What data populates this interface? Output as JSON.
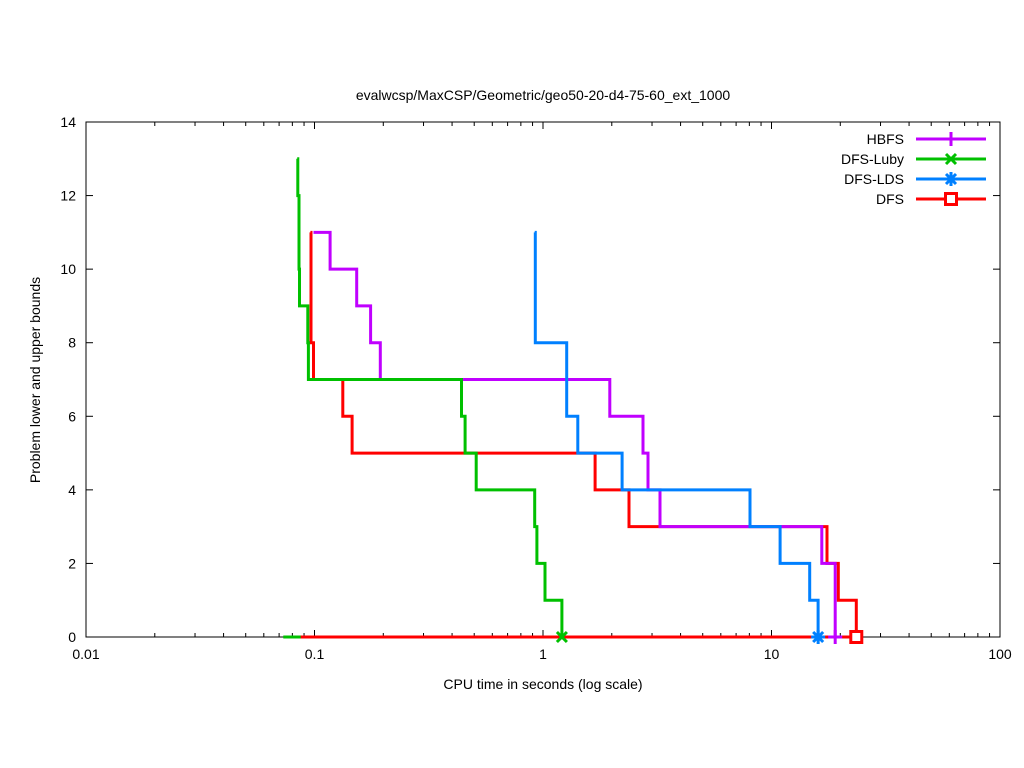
{
  "chart_data": {
    "type": "line",
    "subtype": "staircase-bounds",
    "title": "evalwcsp/MaxCSP/Geometric/geo50-20-d4-75-60_ext_1000",
    "xlabel": "CPU time in seconds (log scale)",
    "ylabel": "Problem lower and upper bounds",
    "x_scale": "log",
    "xlim": [
      0.01,
      100
    ],
    "ylim": [
      0,
      14
    ],
    "grid": false,
    "axis_color": "#000000",
    "background_color": "#ffffff",
    "legend_position": "top-right-inside",
    "x_major_ticks": [
      {
        "value": 0.01,
        "label": "0.01"
      },
      {
        "value": 0.1,
        "label": "0.1"
      },
      {
        "value": 1,
        "label": "1"
      },
      {
        "value": 10,
        "label": "10"
      },
      {
        "value": 100,
        "label": "100"
      }
    ],
    "y_major_ticks": [
      {
        "value": 0,
        "label": "0"
      },
      {
        "value": 2,
        "label": "2"
      },
      {
        "value": 4,
        "label": "4"
      },
      {
        "value": 6,
        "label": "6"
      },
      {
        "value": 8,
        "label": "8"
      },
      {
        "value": 10,
        "label": "10"
      },
      {
        "value": 12,
        "label": "12"
      },
      {
        "value": 14,
        "label": "14"
      }
    ],
    "series": [
      {
        "name": "HBFS",
        "color": "#c000ff",
        "marker": "plus",
        "upper_bound_steps": [
          [
            0.099,
            11
          ],
          [
            0.117,
            10
          ],
          [
            0.153,
            9
          ],
          [
            0.176,
            8
          ],
          [
            0.194,
            7
          ],
          [
            1.96,
            6
          ],
          [
            2.74,
            5
          ],
          [
            2.88,
            4
          ],
          [
            3.25,
            3
          ],
          [
            16.6,
            2
          ],
          [
            19.0,
            0
          ]
        ],
        "lower_bound_value": 0,
        "lower_bound_from": 0.099,
        "lower_bound_to": 19.0,
        "end_marker_at": [
          19.0,
          0
        ]
      },
      {
        "name": "DFS-Luby",
        "color": "#00c000",
        "marker": "cross",
        "upper_bound_steps": [
          [
            0.084,
            13
          ],
          [
            0.0845,
            12
          ],
          [
            0.0855,
            10
          ],
          [
            0.086,
            9
          ],
          [
            0.0935,
            8
          ],
          [
            0.094,
            7
          ],
          [
            0.44,
            6
          ],
          [
            0.456,
            5
          ],
          [
            0.51,
            4
          ],
          [
            0.92,
            3
          ],
          [
            0.94,
            2
          ],
          [
            1.02,
            1
          ],
          [
            1.21,
            0
          ]
        ],
        "lower_bound_value": 0,
        "lower_bound_from": 0.073,
        "lower_bound_to": 1.21,
        "end_marker_at": [
          1.21,
          0
        ]
      },
      {
        "name": "DFS-LDS",
        "color": "#0080ff",
        "marker": "asterisk",
        "upper_bound_steps": [
          [
            0.92,
            11
          ],
          [
            0.925,
            8
          ],
          [
            1.27,
            6
          ],
          [
            1.42,
            5
          ],
          [
            2.22,
            4
          ],
          [
            8.05,
            3
          ],
          [
            10.9,
            2
          ],
          [
            14.7,
            1
          ],
          [
            16.0,
            0
          ]
        ],
        "lower_bound_value": 0,
        "lower_bound_from": 0.92,
        "lower_bound_to": 16.0,
        "end_marker_at": [
          16.0,
          0
        ]
      },
      {
        "name": "DFS",
        "color": "#ff0000",
        "marker": "open-square",
        "upper_bound_steps": [
          [
            0.096,
            11
          ],
          [
            0.0965,
            8
          ],
          [
            0.099,
            7
          ],
          [
            0.133,
            6
          ],
          [
            0.146,
            5
          ],
          [
            1.69,
            4
          ],
          [
            2.38,
            3
          ],
          [
            17.5,
            2
          ],
          [
            19.6,
            1
          ],
          [
            23.5,
            0
          ]
        ],
        "lower_bound_value": 0,
        "lower_bound_from": 0.087,
        "lower_bound_to": 23.5,
        "end_marker_at": [
          23.5,
          0
        ]
      }
    ],
    "draw_order_lower": [
      1,
      0,
      2,
      3
    ],
    "draw_order_upper": [
      3,
      0,
      2,
      1
    ]
  }
}
